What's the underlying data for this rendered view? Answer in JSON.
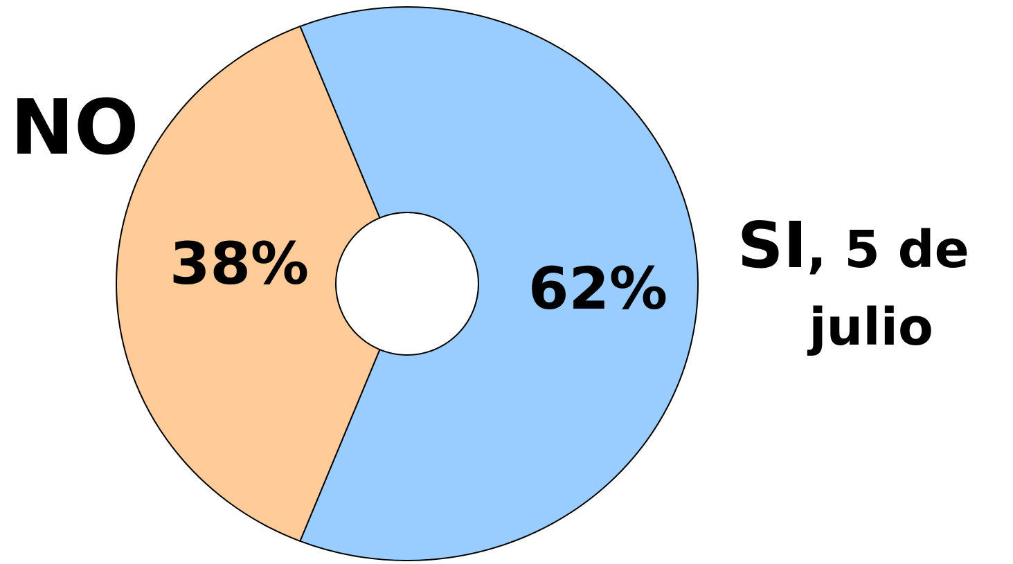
{
  "chart_data": {
    "type": "pie",
    "categories": [
      "NO",
      "SI"
    ],
    "values": [
      38,
      62
    ],
    "data_labels": [
      "38%",
      "62%"
    ],
    "slices": [
      {
        "name": "NO",
        "value": 38,
        "label": "38%",
        "color": "#FFCC99"
      },
      {
        "name": "SI",
        "name_suffix": ", 5 de",
        "name_line2": "julio",
        "value": 62,
        "label": "62%",
        "color": "#99CCFF"
      }
    ],
    "outline_color": "#000000",
    "hole_color": "#FFFFFF"
  }
}
